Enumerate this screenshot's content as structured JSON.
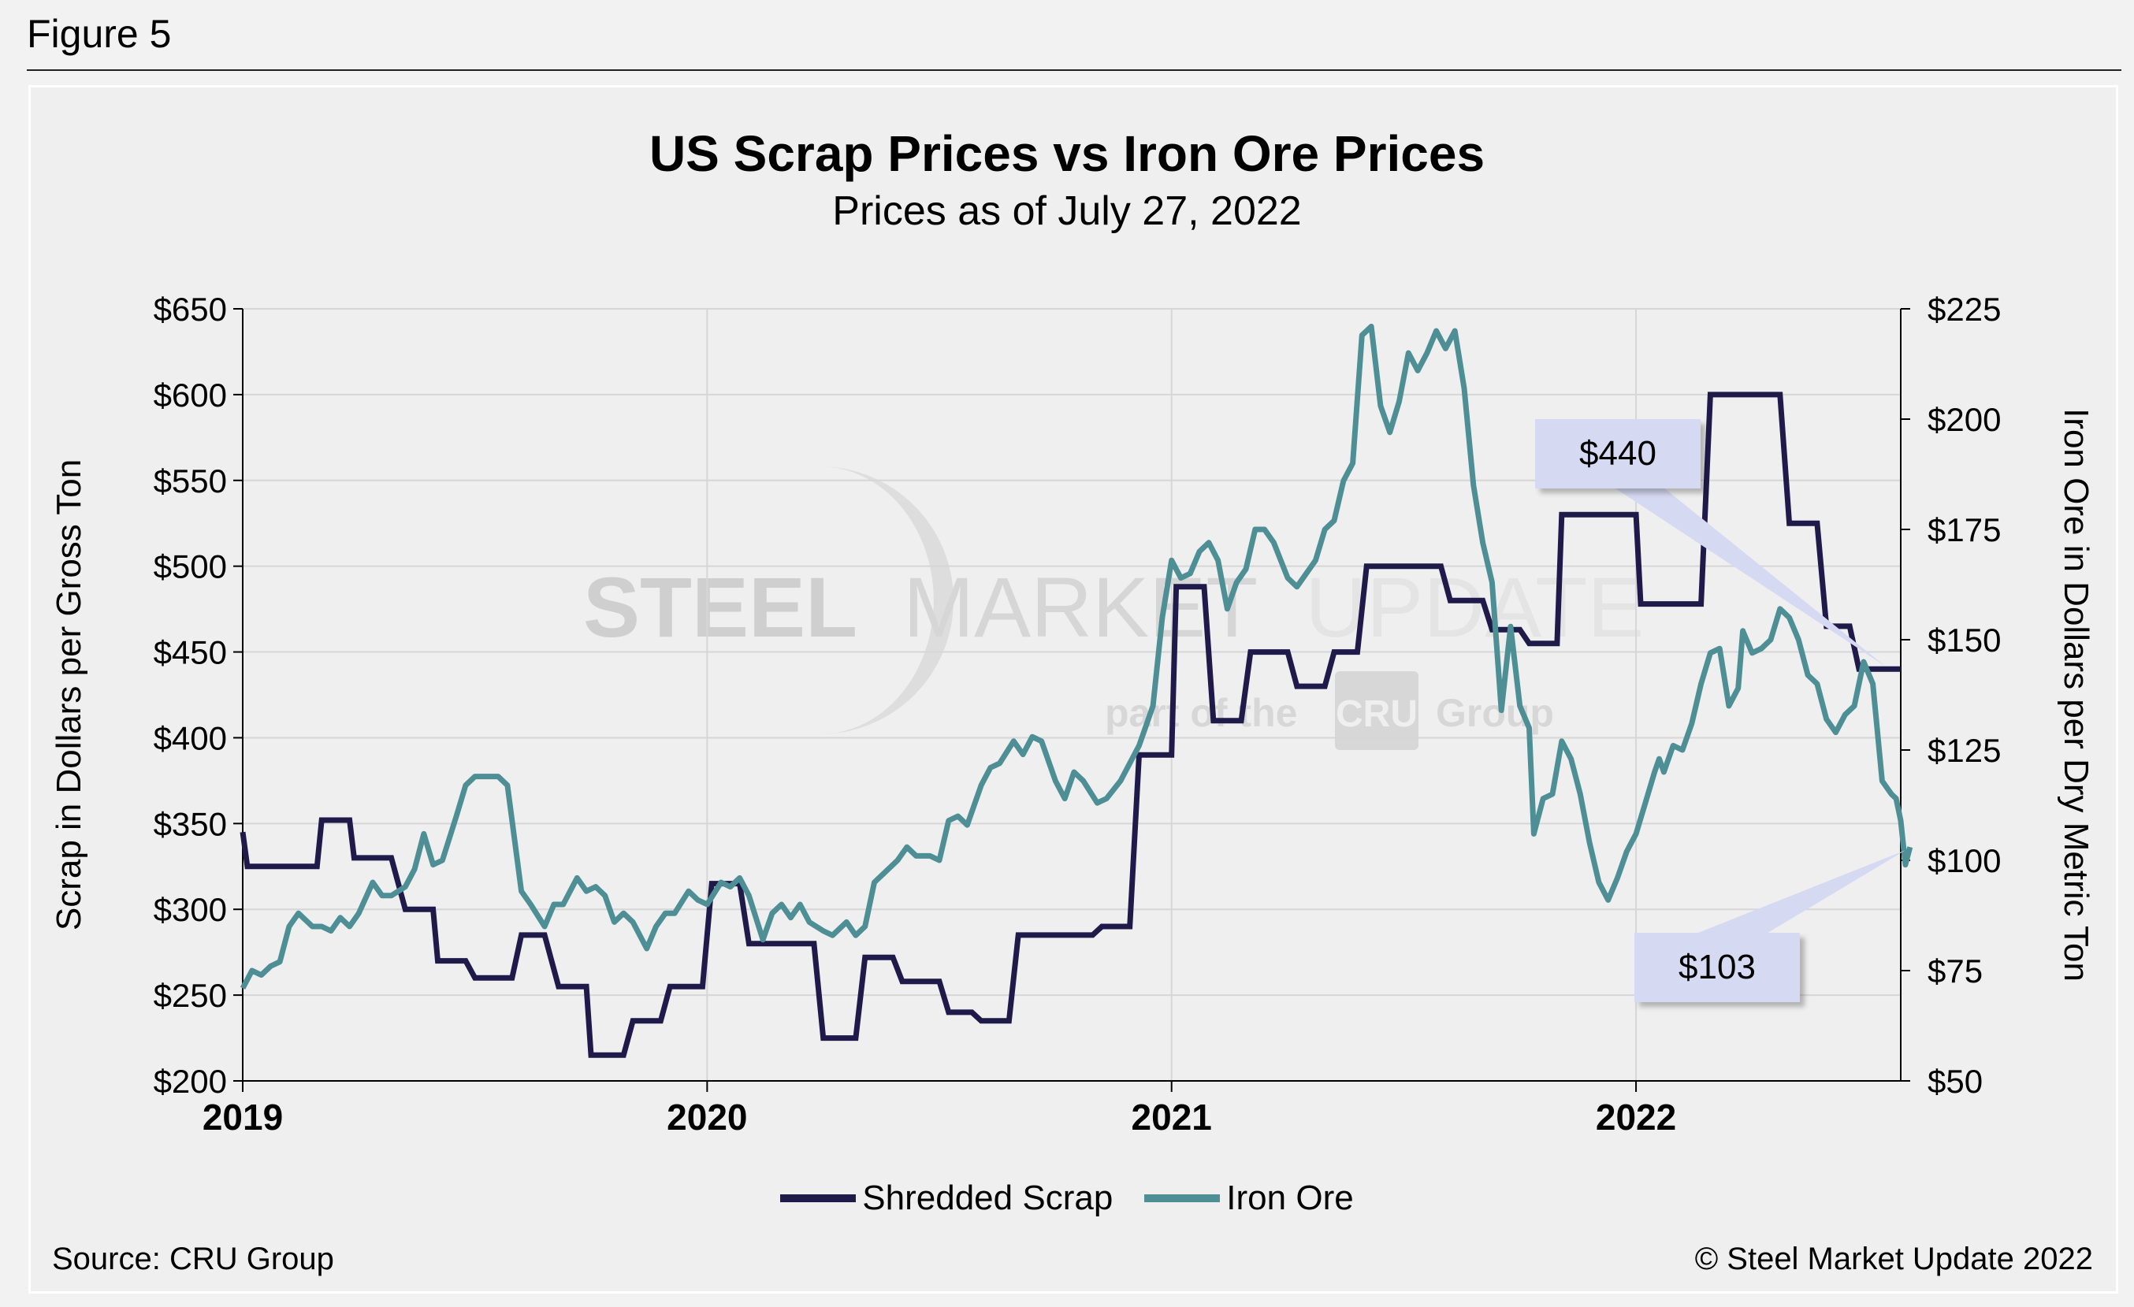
{
  "figure_label": "Figure 5",
  "source": "Source: CRU Group",
  "copyright": "© Steel Market Update 2022",
  "watermark": {
    "brand_left": "STEEL",
    "brand_mid": "MARKET",
    "brand_right": "UPDATE",
    "tagline_pre": "part of the",
    "tagline_badge": "CRU",
    "tagline_post": "Group"
  },
  "callouts": {
    "scrap_latest": "$440",
    "ore_latest": "$103"
  },
  "colors": {
    "scrap": "#1f1a4a",
    "ore": "#4e8f96",
    "grid": "#d6d6d6",
    "callout_bg": "#d6d9f2"
  },
  "chart_data": {
    "type": "line",
    "title": "US Scrap Prices vs Iron Ore Prices",
    "subtitle": "Prices as of July 27, 2022",
    "xlabel": "",
    "x_ticks": [
      "2019",
      "2020",
      "2021",
      "2022"
    ],
    "x_range": [
      "2019-01",
      "2022-07-27"
    ],
    "y_left": {
      "label": "Scrap in Dollars per Gross Ton",
      "lim": [
        200,
        650
      ],
      "ticks": [
        "$200",
        "$250",
        "$300",
        "$350",
        "$400",
        "$450",
        "$500",
        "$550",
        "$600",
        "$650"
      ]
    },
    "y_right": {
      "label": "Iron Ore in Dollars per Dry Metric Ton",
      "lim": [
        50,
        225
      ],
      "ticks": [
        "$50",
        "$75",
        "$100",
        "$125",
        "$150",
        "$175",
        "$200",
        "$225"
      ]
    },
    "grid": true,
    "legend_position": "bottom",
    "series": [
      {
        "name": "Shredded Scrap",
        "axis": "left",
        "step": true,
        "points": [
          [
            2019.0,
            345
          ],
          [
            2019.01,
            325
          ],
          [
            2019.16,
            325
          ],
          [
            2019.17,
            352
          ],
          [
            2019.23,
            352
          ],
          [
            2019.24,
            330
          ],
          [
            2019.32,
            330
          ],
          [
            2019.35,
            300
          ],
          [
            2019.41,
            300
          ],
          [
            2019.42,
            270
          ],
          [
            2019.48,
            270
          ],
          [
            2019.5,
            260
          ],
          [
            2019.58,
            260
          ],
          [
            2019.6,
            285
          ],
          [
            2019.65,
            285
          ],
          [
            2019.68,
            255
          ],
          [
            2019.74,
            255
          ],
          [
            2019.75,
            215
          ],
          [
            2019.82,
            215
          ],
          [
            2019.84,
            235
          ],
          [
            2019.9,
            235
          ],
          [
            2019.92,
            255
          ],
          [
            2019.99,
            255
          ],
          [
            2020.01,
            315
          ],
          [
            2020.07,
            315
          ],
          [
            2020.09,
            280
          ],
          [
            2020.23,
            280
          ],
          [
            2020.25,
            225
          ],
          [
            2020.32,
            225
          ],
          [
            2020.34,
            272
          ],
          [
            2020.4,
            272
          ],
          [
            2020.42,
            258
          ],
          [
            2020.5,
            258
          ],
          [
            2020.52,
            240
          ],
          [
            2020.57,
            240
          ],
          [
            2020.59,
            235
          ],
          [
            2020.65,
            235
          ],
          [
            2020.67,
            285
          ],
          [
            2020.83,
            285
          ],
          [
            2020.85,
            290
          ],
          [
            2020.91,
            290
          ],
          [
            2020.93,
            390
          ],
          [
            2021.0,
            390
          ],
          [
            2021.01,
            488
          ],
          [
            2021.07,
            488
          ],
          [
            2021.09,
            410
          ],
          [
            2021.15,
            410
          ],
          [
            2021.17,
            450
          ],
          [
            2021.25,
            450
          ],
          [
            2021.27,
            430
          ],
          [
            2021.33,
            430
          ],
          [
            2021.35,
            450
          ],
          [
            2021.4,
            450
          ],
          [
            2021.42,
            500
          ],
          [
            2021.58,
            500
          ],
          [
            2021.6,
            480
          ],
          [
            2021.67,
            480
          ],
          [
            2021.69,
            463
          ],
          [
            2021.75,
            463
          ],
          [
            2021.77,
            455
          ],
          [
            2021.83,
            455
          ],
          [
            2021.84,
            530
          ],
          [
            2022.0,
            530
          ],
          [
            2022.01,
            478
          ],
          [
            2022.14,
            478
          ],
          [
            2022.16,
            600
          ],
          [
            2022.31,
            600
          ],
          [
            2022.33,
            525
          ],
          [
            2022.39,
            525
          ],
          [
            2022.41,
            465
          ],
          [
            2022.46,
            465
          ],
          [
            2022.48,
            440
          ],
          [
            2022.57,
            440
          ]
        ]
      },
      {
        "name": "Iron Ore",
        "axis": "right",
        "step": false,
        "points": [
          [
            2019.0,
            71
          ],
          [
            2019.02,
            75
          ],
          [
            2019.04,
            74
          ],
          [
            2019.06,
            76
          ],
          [
            2019.08,
            77
          ],
          [
            2019.1,
            85
          ],
          [
            2019.12,
            88
          ],
          [
            2019.15,
            85
          ],
          [
            2019.17,
            85
          ],
          [
            2019.19,
            84
          ],
          [
            2019.21,
            87
          ],
          [
            2019.23,
            85
          ],
          [
            2019.25,
            88
          ],
          [
            2019.28,
            95
          ],
          [
            2019.3,
            92
          ],
          [
            2019.32,
            92
          ],
          [
            2019.35,
            94
          ],
          [
            2019.37,
            98
          ],
          [
            2019.39,
            106
          ],
          [
            2019.41,
            99
          ],
          [
            2019.43,
            100
          ],
          [
            2019.46,
            110
          ],
          [
            2019.48,
            117
          ],
          [
            2019.5,
            119
          ],
          [
            2019.53,
            119
          ],
          [
            2019.55,
            119
          ],
          [
            2019.57,
            117
          ],
          [
            2019.6,
            93
          ],
          [
            2019.62,
            90
          ],
          [
            2019.65,
            85
          ],
          [
            2019.67,
            90
          ],
          [
            2019.69,
            90
          ],
          [
            2019.72,
            96
          ],
          [
            2019.74,
            93
          ],
          [
            2019.76,
            94
          ],
          [
            2019.78,
            92
          ],
          [
            2019.8,
            86
          ],
          [
            2019.82,
            88
          ],
          [
            2019.84,
            86
          ],
          [
            2019.87,
            80
          ],
          [
            2019.89,
            85
          ],
          [
            2019.91,
            88
          ],
          [
            2019.93,
            88
          ],
          [
            2019.96,
            93
          ],
          [
            2019.98,
            91
          ],
          [
            2020.0,
            90
          ],
          [
            2020.03,
            95
          ],
          [
            2020.05,
            94
          ],
          [
            2020.07,
            96
          ],
          [
            2020.09,
            92
          ],
          [
            2020.12,
            82
          ],
          [
            2020.14,
            88
          ],
          [
            2020.16,
            90
          ],
          [
            2020.18,
            87
          ],
          [
            2020.2,
            90
          ],
          [
            2020.22,
            86
          ],
          [
            2020.25,
            84
          ],
          [
            2020.27,
            83
          ],
          [
            2020.3,
            86
          ],
          [
            2020.32,
            83
          ],
          [
            2020.34,
            85
          ],
          [
            2020.36,
            95
          ],
          [
            2020.38,
            97
          ],
          [
            2020.41,
            100
          ],
          [
            2020.43,
            103
          ],
          [
            2020.45,
            101
          ],
          [
            2020.48,
            101
          ],
          [
            2020.5,
            100
          ],
          [
            2020.52,
            109
          ],
          [
            2020.54,
            110
          ],
          [
            2020.56,
            108
          ],
          [
            2020.59,
            117
          ],
          [
            2020.61,
            121
          ],
          [
            2020.63,
            122
          ],
          [
            2020.66,
            127
          ],
          [
            2020.68,
            124
          ],
          [
            2020.7,
            128
          ],
          [
            2020.72,
            127
          ],
          [
            2020.75,
            118
          ],
          [
            2020.77,
            114
          ],
          [
            2020.79,
            120
          ],
          [
            2020.81,
            118
          ],
          [
            2020.84,
            113
          ],
          [
            2020.86,
            114
          ],
          [
            2020.89,
            118
          ],
          [
            2020.91,
            122
          ],
          [
            2020.93,
            126
          ],
          [
            2020.96,
            135
          ],
          [
            2020.98,
            155
          ],
          [
            2021.0,
            168
          ],
          [
            2021.02,
            164
          ],
          [
            2021.04,
            165
          ],
          [
            2021.06,
            170
          ],
          [
            2021.08,
            172
          ],
          [
            2021.1,
            168
          ],
          [
            2021.12,
            157
          ],
          [
            2021.14,
            163
          ],
          [
            2021.16,
            166
          ],
          [
            2021.18,
            175
          ],
          [
            2021.2,
            175
          ],
          [
            2021.22,
            172
          ],
          [
            2021.25,
            164
          ],
          [
            2021.27,
            162
          ],
          [
            2021.29,
            165
          ],
          [
            2021.31,
            168
          ],
          [
            2021.33,
            175
          ],
          [
            2021.35,
            177
          ],
          [
            2021.37,
            186
          ],
          [
            2021.39,
            190
          ],
          [
            2021.41,
            219
          ],
          [
            2021.43,
            221
          ],
          [
            2021.45,
            203
          ],
          [
            2021.47,
            197
          ],
          [
            2021.49,
            204
          ],
          [
            2021.51,
            215
          ],
          [
            2021.53,
            211
          ],
          [
            2021.55,
            215
          ],
          [
            2021.57,
            220
          ],
          [
            2021.59,
            216
          ],
          [
            2021.61,
            220
          ],
          [
            2021.63,
            207
          ],
          [
            2021.65,
            185
          ],
          [
            2021.67,
            172
          ],
          [
            2021.69,
            163
          ],
          [
            2021.71,
            134
          ],
          [
            2021.73,
            153
          ],
          [
            2021.75,
            135
          ],
          [
            2021.77,
            130
          ],
          [
            2021.78,
            106
          ],
          [
            2021.8,
            114
          ],
          [
            2021.82,
            115
          ],
          [
            2021.84,
            127
          ],
          [
            2021.86,
            123
          ],
          [
            2021.88,
            115
          ],
          [
            2021.9,
            104
          ],
          [
            2021.92,
            95
          ],
          [
            2021.94,
            91
          ],
          [
            2021.96,
            96
          ],
          [
            2021.98,
            102
          ],
          [
            2022.0,
            106
          ],
          [
            2022.02,
            113
          ],
          [
            2022.04,
            120
          ],
          [
            2022.05,
            123
          ],
          [
            2022.06,
            120
          ],
          [
            2022.08,
            126
          ],
          [
            2022.1,
            125
          ],
          [
            2022.12,
            131
          ],
          [
            2022.14,
            140
          ],
          [
            2022.16,
            147
          ],
          [
            2022.18,
            148
          ],
          [
            2022.2,
            135
          ],
          [
            2022.22,
            139
          ],
          [
            2022.23,
            152
          ],
          [
            2022.25,
            147
          ],
          [
            2022.27,
            148
          ],
          [
            2022.29,
            150
          ],
          [
            2022.31,
            157
          ],
          [
            2022.33,
            155
          ],
          [
            2022.35,
            150
          ],
          [
            2022.37,
            142
          ],
          [
            2022.39,
            140
          ],
          [
            2022.41,
            132
          ],
          [
            2022.43,
            129
          ],
          [
            2022.45,
            133
          ],
          [
            2022.47,
            135
          ],
          [
            2022.49,
            145
          ],
          [
            2022.51,
            140
          ],
          [
            2022.53,
            118
          ],
          [
            2022.55,
            115
          ],
          [
            2022.56,
            114
          ],
          [
            2022.57,
            109
          ],
          [
            2022.58,
            99
          ],
          [
            2022.59,
            103
          ]
        ]
      }
    ]
  }
}
